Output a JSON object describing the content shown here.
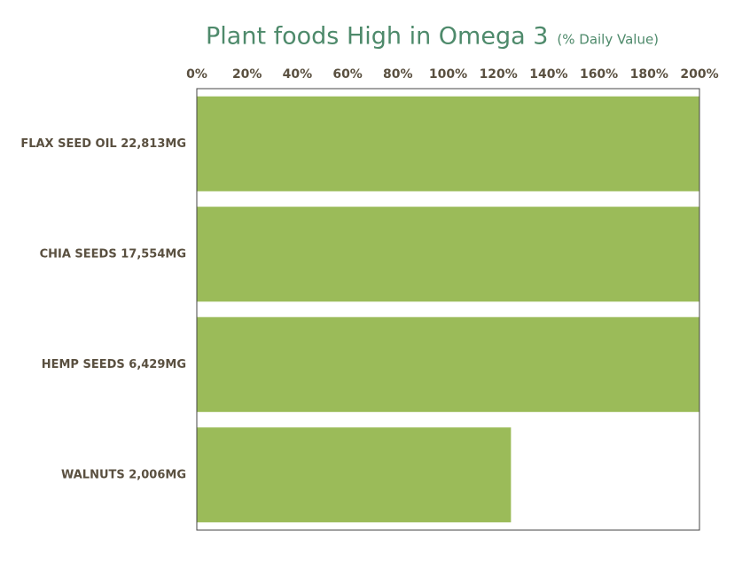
{
  "chart_data": {
    "type": "hbar",
    "title": "Plant foods High in Omega 3",
    "subtitle": "(% Daily Value)",
    "categories": [
      "FLAX SEED OIL 22,813MG",
      "CHIA SEEDS 17,554MG",
      "HEMP SEEDS 6,429MG",
      "WALNUTS 2,006MG"
    ],
    "values": [
      200,
      200,
      200,
      125
    ],
    "color": "#9bbb59",
    "xlim": [
      0,
      200
    ],
    "xticks": [
      {
        "value": 0,
        "label": "0%"
      },
      {
        "value": 20,
        "label": "20%"
      },
      {
        "value": 40,
        "label": "40%"
      },
      {
        "value": 60,
        "label": "60%"
      },
      {
        "value": 80,
        "label": "80%"
      },
      {
        "value": 100,
        "label": "100%"
      },
      {
        "value": 120,
        "label": "120%"
      },
      {
        "value": 140,
        "label": "140%"
      },
      {
        "value": 160,
        "label": "160%"
      },
      {
        "value": 180,
        "label": "180%"
      },
      {
        "value": 200,
        "label": "200%"
      }
    ]
  }
}
